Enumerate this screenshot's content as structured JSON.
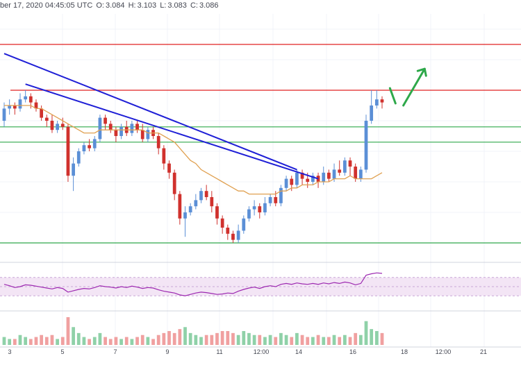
{
  "header": {
    "date_text": "ber 17, 2020 04:45:05 UTC",
    "ohlc": [
      {
        "label": "O:",
        "value": "3.084"
      },
      {
        "label": "H:",
        "value": "3.103"
      },
      {
        "label": "L:",
        "value": "3.083"
      },
      {
        "label": "C:",
        "value": "3.086"
      }
    ]
  },
  "colors": {
    "up": "#5b8fd6",
    "down": "#d0312d",
    "ma": "#e0a050",
    "trendline": "#1f1fd6",
    "resistance": "#e02020",
    "support": "#2ea84a",
    "arrow": "#2ea84a",
    "rsi_line": "#9c27b0",
    "rsi_band": "#f3e5f5",
    "vol_up": "#8fd1a8",
    "vol_down": "#f0a0a0"
  },
  "chart_data": {
    "type": "candlestick",
    "x_ticks": [
      "3",
      "5",
      "7",
      "9",
      "11",
      "12:00",
      "14",
      "16",
      "18",
      "12:00",
      "21"
    ],
    "price": {
      "ylim": [
        2.55,
        3.35
      ],
      "resistance_lines": [
        3.25,
        3.1
      ],
      "support_lines": [
        2.98,
        2.93,
        2.6
      ],
      "candles": [
        [
          3.0,
          3.04,
          3.06,
          2.98
        ],
        [
          3.04,
          3.05,
          3.07,
          3.02
        ],
        [
          3.05,
          3.04,
          3.06,
          3.02
        ],
        [
          3.04,
          3.07,
          3.09,
          3.03
        ],
        [
          3.07,
          3.08,
          3.1,
          3.06
        ],
        [
          3.08,
          3.06,
          3.09,
          3.04
        ],
        [
          3.06,
          3.04,
          3.07,
          3.03
        ],
        [
          3.04,
          3.01,
          3.05,
          3.0
        ],
        [
          3.01,
          3.0,
          3.02,
          2.98
        ],
        [
          3.0,
          2.97,
          3.02,
          2.96
        ],
        [
          2.97,
          2.99,
          3.0,
          2.96
        ],
        [
          2.99,
          2.98,
          3.01,
          2.97
        ],
        [
          2.98,
          2.82,
          2.99,
          2.8
        ],
        [
          2.82,
          2.86,
          2.88,
          2.77
        ],
        [
          2.86,
          2.9,
          2.91,
          2.85
        ],
        [
          2.9,
          2.92,
          2.93,
          2.89
        ],
        [
          2.92,
          2.91,
          2.94,
          2.9
        ],
        [
          2.91,
          2.94,
          2.95,
          2.9
        ],
        [
          2.94,
          3.01,
          3.02,
          2.93
        ],
        [
          3.01,
          2.99,
          3.02,
          2.97
        ],
        [
          2.99,
          2.97,
          3.0,
          2.96
        ],
        [
          2.97,
          2.95,
          2.98,
          2.93
        ],
        [
          2.95,
          2.98,
          2.99,
          2.94
        ],
        [
          2.98,
          2.96,
          3.0,
          2.95
        ],
        [
          2.96,
          2.99,
          3.0,
          2.95
        ],
        [
          2.99,
          2.97,
          3.0,
          2.96
        ],
        [
          2.97,
          2.94,
          2.99,
          2.93
        ],
        [
          2.94,
          2.97,
          2.98,
          2.93
        ],
        [
          2.97,
          2.95,
          2.98,
          2.94
        ],
        [
          2.95,
          2.91,
          2.96,
          2.89
        ],
        [
          2.91,
          2.86,
          2.92,
          2.84
        ],
        [
          2.86,
          2.83,
          2.87,
          2.81
        ],
        [
          2.83,
          2.76,
          2.84,
          2.74
        ],
        [
          2.76,
          2.68,
          2.77,
          2.66
        ],
        [
          2.68,
          2.7,
          2.72,
          2.62
        ],
        [
          2.7,
          2.72,
          2.73,
          2.69
        ],
        [
          2.72,
          2.74,
          2.76,
          2.71
        ],
        [
          2.74,
          2.77,
          2.78,
          2.73
        ],
        [
          2.77,
          2.75,
          2.79,
          2.74
        ],
        [
          2.75,
          2.72,
          2.77,
          2.7
        ],
        [
          2.72,
          2.68,
          2.73,
          2.66
        ],
        [
          2.68,
          2.65,
          2.69,
          2.63
        ],
        [
          2.65,
          2.63,
          2.66,
          2.61
        ],
        [
          2.63,
          2.61,
          2.64,
          2.6
        ],
        [
          2.61,
          2.64,
          2.66,
          2.6
        ],
        [
          2.64,
          2.68,
          2.69,
          2.63
        ],
        [
          2.68,
          2.71,
          2.72,
          2.67
        ],
        [
          2.71,
          2.72,
          2.74,
          2.69
        ],
        [
          2.72,
          2.7,
          2.73,
          2.68
        ],
        [
          2.7,
          2.73,
          2.75,
          2.69
        ],
        [
          2.73,
          2.75,
          2.76,
          2.72
        ],
        [
          2.75,
          2.73,
          2.77,
          2.72
        ],
        [
          2.73,
          2.78,
          2.79,
          2.72
        ],
        [
          2.78,
          2.81,
          2.82,
          2.77
        ],
        [
          2.81,
          2.79,
          2.82,
          2.77
        ],
        [
          2.79,
          2.83,
          2.84,
          2.78
        ],
        [
          2.83,
          2.81,
          2.84,
          2.79
        ],
        [
          2.81,
          2.8,
          2.83,
          2.78
        ],
        [
          2.8,
          2.82,
          2.83,
          2.79
        ],
        [
          2.82,
          2.8,
          2.83,
          2.78
        ],
        [
          2.8,
          2.83,
          2.85,
          2.79
        ],
        [
          2.83,
          2.81,
          2.84,
          2.8
        ],
        [
          2.81,
          2.84,
          2.86,
          2.8
        ],
        [
          2.84,
          2.83,
          2.87,
          2.82
        ],
        [
          2.83,
          2.87,
          2.88,
          2.82
        ],
        [
          2.87,
          2.85,
          2.88,
          2.82
        ],
        [
          2.85,
          2.81,
          2.86,
          2.8
        ],
        [
          2.81,
          2.84,
          2.85,
          2.8
        ],
        [
          2.84,
          3.0,
          3.02,
          2.83
        ],
        [
          3.0,
          3.05,
          3.1,
          2.99
        ],
        [
          3.05,
          3.07,
          3.1,
          3.04
        ],
        [
          3.07,
          3.06,
          3.08,
          3.04
        ]
      ],
      "ma_values": [
        3.05,
        3.05,
        3.05,
        3.05,
        3.05,
        3.05,
        3.04,
        3.04,
        3.03,
        3.02,
        3.01,
        3.0,
        2.99,
        2.98,
        2.97,
        2.96,
        2.96,
        2.96,
        2.97,
        2.97,
        2.97,
        2.97,
        2.97,
        2.97,
        2.97,
        2.97,
        2.97,
        2.96,
        2.96,
        2.96,
        2.95,
        2.94,
        2.93,
        2.91,
        2.89,
        2.87,
        2.86,
        2.84,
        2.83,
        2.82,
        2.81,
        2.8,
        2.79,
        2.78,
        2.77,
        2.77,
        2.76,
        2.76,
        2.76,
        2.76,
        2.76,
        2.76,
        2.77,
        2.77,
        2.78,
        2.78,
        2.79,
        2.79,
        2.79,
        2.8,
        2.8,
        2.8,
        2.81,
        2.81,
        2.81,
        2.82,
        2.81,
        2.81,
        2.81,
        2.81,
        2.82,
        2.83
      ],
      "trendlines": [
        {
          "start": {
            "i": 0,
            "p": 3.22
          },
          "end": {
            "i": 55,
            "p": 2.84
          }
        },
        {
          "start": {
            "i": 4,
            "p": 3.12
          },
          "end": {
            "i": 59,
            "p": 2.81
          }
        }
      ],
      "arrow_up": {
        "start": {
          "i": 75,
          "p": 3.05
        },
        "end": {
          "i": 79,
          "p": 3.17
        }
      }
    },
    "rsi": {
      "ylim": [
        0,
        100
      ],
      "values": [
        55,
        52,
        48,
        50,
        54,
        53,
        51,
        49,
        47,
        45,
        48,
        46,
        38,
        41,
        44,
        46,
        45,
        48,
        52,
        50,
        49,
        47,
        50,
        48,
        51,
        49,
        46,
        48,
        47,
        43,
        40,
        38,
        36,
        32,
        30,
        33,
        36,
        38,
        37,
        35,
        33,
        34,
        36,
        35,
        40,
        44,
        47,
        49,
        46,
        50,
        52,
        50,
        55,
        57,
        55,
        58,
        56,
        55,
        57,
        55,
        58,
        56,
        59,
        57,
        60,
        58,
        54,
        57,
        75,
        78,
        80,
        79
      ]
    },
    "volume": {
      "values": [
        4,
        3,
        3,
        5,
        4,
        3,
        4,
        5,
        4,
        5,
        3,
        4,
        14,
        9,
        6,
        4,
        3,
        4,
        6,
        4,
        3,
        4,
        3,
        4,
        3,
        4,
        5,
        4,
        3,
        5,
        6,
        7,
        6,
        8,
        9,
        6,
        5,
        4,
        5,
        5,
        6,
        7,
        7,
        6,
        5,
        7,
        6,
        5,
        5,
        4,
        5,
        4,
        6,
        5,
        4,
        6,
        5,
        4,
        4,
        5,
        4,
        4,
        5,
        4,
        5,
        4,
        6,
        5,
        12,
        8,
        7,
        6
      ]
    }
  }
}
